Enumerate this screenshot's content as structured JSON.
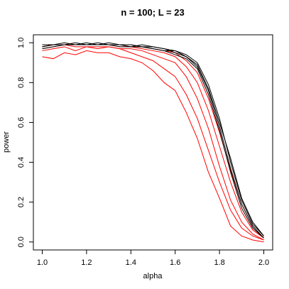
{
  "chart_data": {
    "type": "line",
    "title": "n = 100; L = 23",
    "x_label": "alpha",
    "y_label": "power",
    "x": [
      1.0,
      1.05,
      1.1,
      1.15,
      1.2,
      1.25,
      1.3,
      1.35,
      1.4,
      1.45,
      1.5,
      1.55,
      1.6,
      1.65,
      1.7,
      1.75,
      1.8,
      1.85,
      1.9,
      1.95,
      2.0
    ],
    "series": [
      {
        "color": "#ff0000",
        "values": [
          0.93,
          0.92,
          0.95,
          0.94,
          0.96,
          0.95,
          0.95,
          0.93,
          0.92,
          0.9,
          0.86,
          0.8,
          0.76,
          0.65,
          0.52,
          0.35,
          0.22,
          0.08,
          0.03,
          0.01,
          0.0
        ]
      },
      {
        "color": "#ff0000",
        "values": [
          0.96,
          0.97,
          0.98,
          0.96,
          0.98,
          0.97,
          0.98,
          0.97,
          0.95,
          0.93,
          0.91,
          0.87,
          0.83,
          0.74,
          0.62,
          0.46,
          0.3,
          0.16,
          0.07,
          0.03,
          0.01
        ]
      },
      {
        "color": "#ff0000",
        "values": [
          0.97,
          0.98,
          0.99,
          0.98,
          0.98,
          0.98,
          0.98,
          0.97,
          0.97,
          0.96,
          0.94,
          0.92,
          0.9,
          0.83,
          0.72,
          0.57,
          0.38,
          0.21,
          0.1,
          0.04,
          0.01
        ]
      },
      {
        "color": "#ff0000",
        "values": [
          0.98,
          0.99,
          0.99,
          0.99,
          0.99,
          0.99,
          0.99,
          0.98,
          0.98,
          0.97,
          0.96,
          0.95,
          0.93,
          0.88,
          0.8,
          0.66,
          0.48,
          0.3,
          0.15,
          0.06,
          0.02
        ]
      },
      {
        "color": "#ff0000",
        "values": [
          0.98,
          0.99,
          0.99,
          0.99,
          0.99,
          0.99,
          0.99,
          0.99,
          0.98,
          0.98,
          0.97,
          0.96,
          0.95,
          0.91,
          0.85,
          0.72,
          0.55,
          0.36,
          0.19,
          0.08,
          0.02
        ]
      },
      {
        "color": "#000000",
        "values": [
          0.98,
          0.99,
          0.99,
          0.99,
          0.99,
          1.0,
          0.99,
          0.99,
          0.99,
          0.98,
          0.98,
          0.97,
          0.96,
          0.94,
          0.9,
          0.79,
          0.62,
          0.4,
          0.21,
          0.09,
          0.03
        ]
      },
      {
        "color": "#000000",
        "values": [
          0.98,
          0.99,
          1.0,
          0.99,
          1.0,
          0.99,
          1.0,
          0.99,
          0.98,
          0.99,
          0.98,
          0.97,
          0.95,
          0.93,
          0.88,
          0.76,
          0.58,
          0.37,
          0.19,
          0.08,
          0.02
        ]
      },
      {
        "color": "#000000",
        "values": [
          0.99,
          0.99,
          0.99,
          1.0,
          0.99,
          0.99,
          0.99,
          0.99,
          0.99,
          0.98,
          0.97,
          0.96,
          0.96,
          0.93,
          0.89,
          0.77,
          0.6,
          0.42,
          0.22,
          0.1,
          0.03
        ]
      },
      {
        "color": "#000000",
        "values": [
          0.97,
          0.98,
          0.99,
          0.99,
          0.99,
          0.99,
          0.99,
          0.98,
          0.98,
          0.98,
          0.97,
          0.96,
          0.94,
          0.92,
          0.87,
          0.74,
          0.56,
          0.35,
          0.17,
          0.07,
          0.02
        ]
      }
    ],
    "xlim": [
      0.96,
      2.04
    ],
    "ylim": [
      -0.04,
      1.04
    ],
    "xticks": [
      {
        "value": 1.0,
        "label": "1.0"
      },
      1.2,
      1.4,
      1.6,
      1.8,
      {
        "value": 2.0,
        "label": "2.0"
      }
    ],
    "yticks": [
      {
        "value": 0.0,
        "label": "0.0"
      },
      0.2,
      0.4,
      0.6,
      0.8,
      {
        "value": 1.0,
        "label": "1.0"
      }
    ]
  }
}
